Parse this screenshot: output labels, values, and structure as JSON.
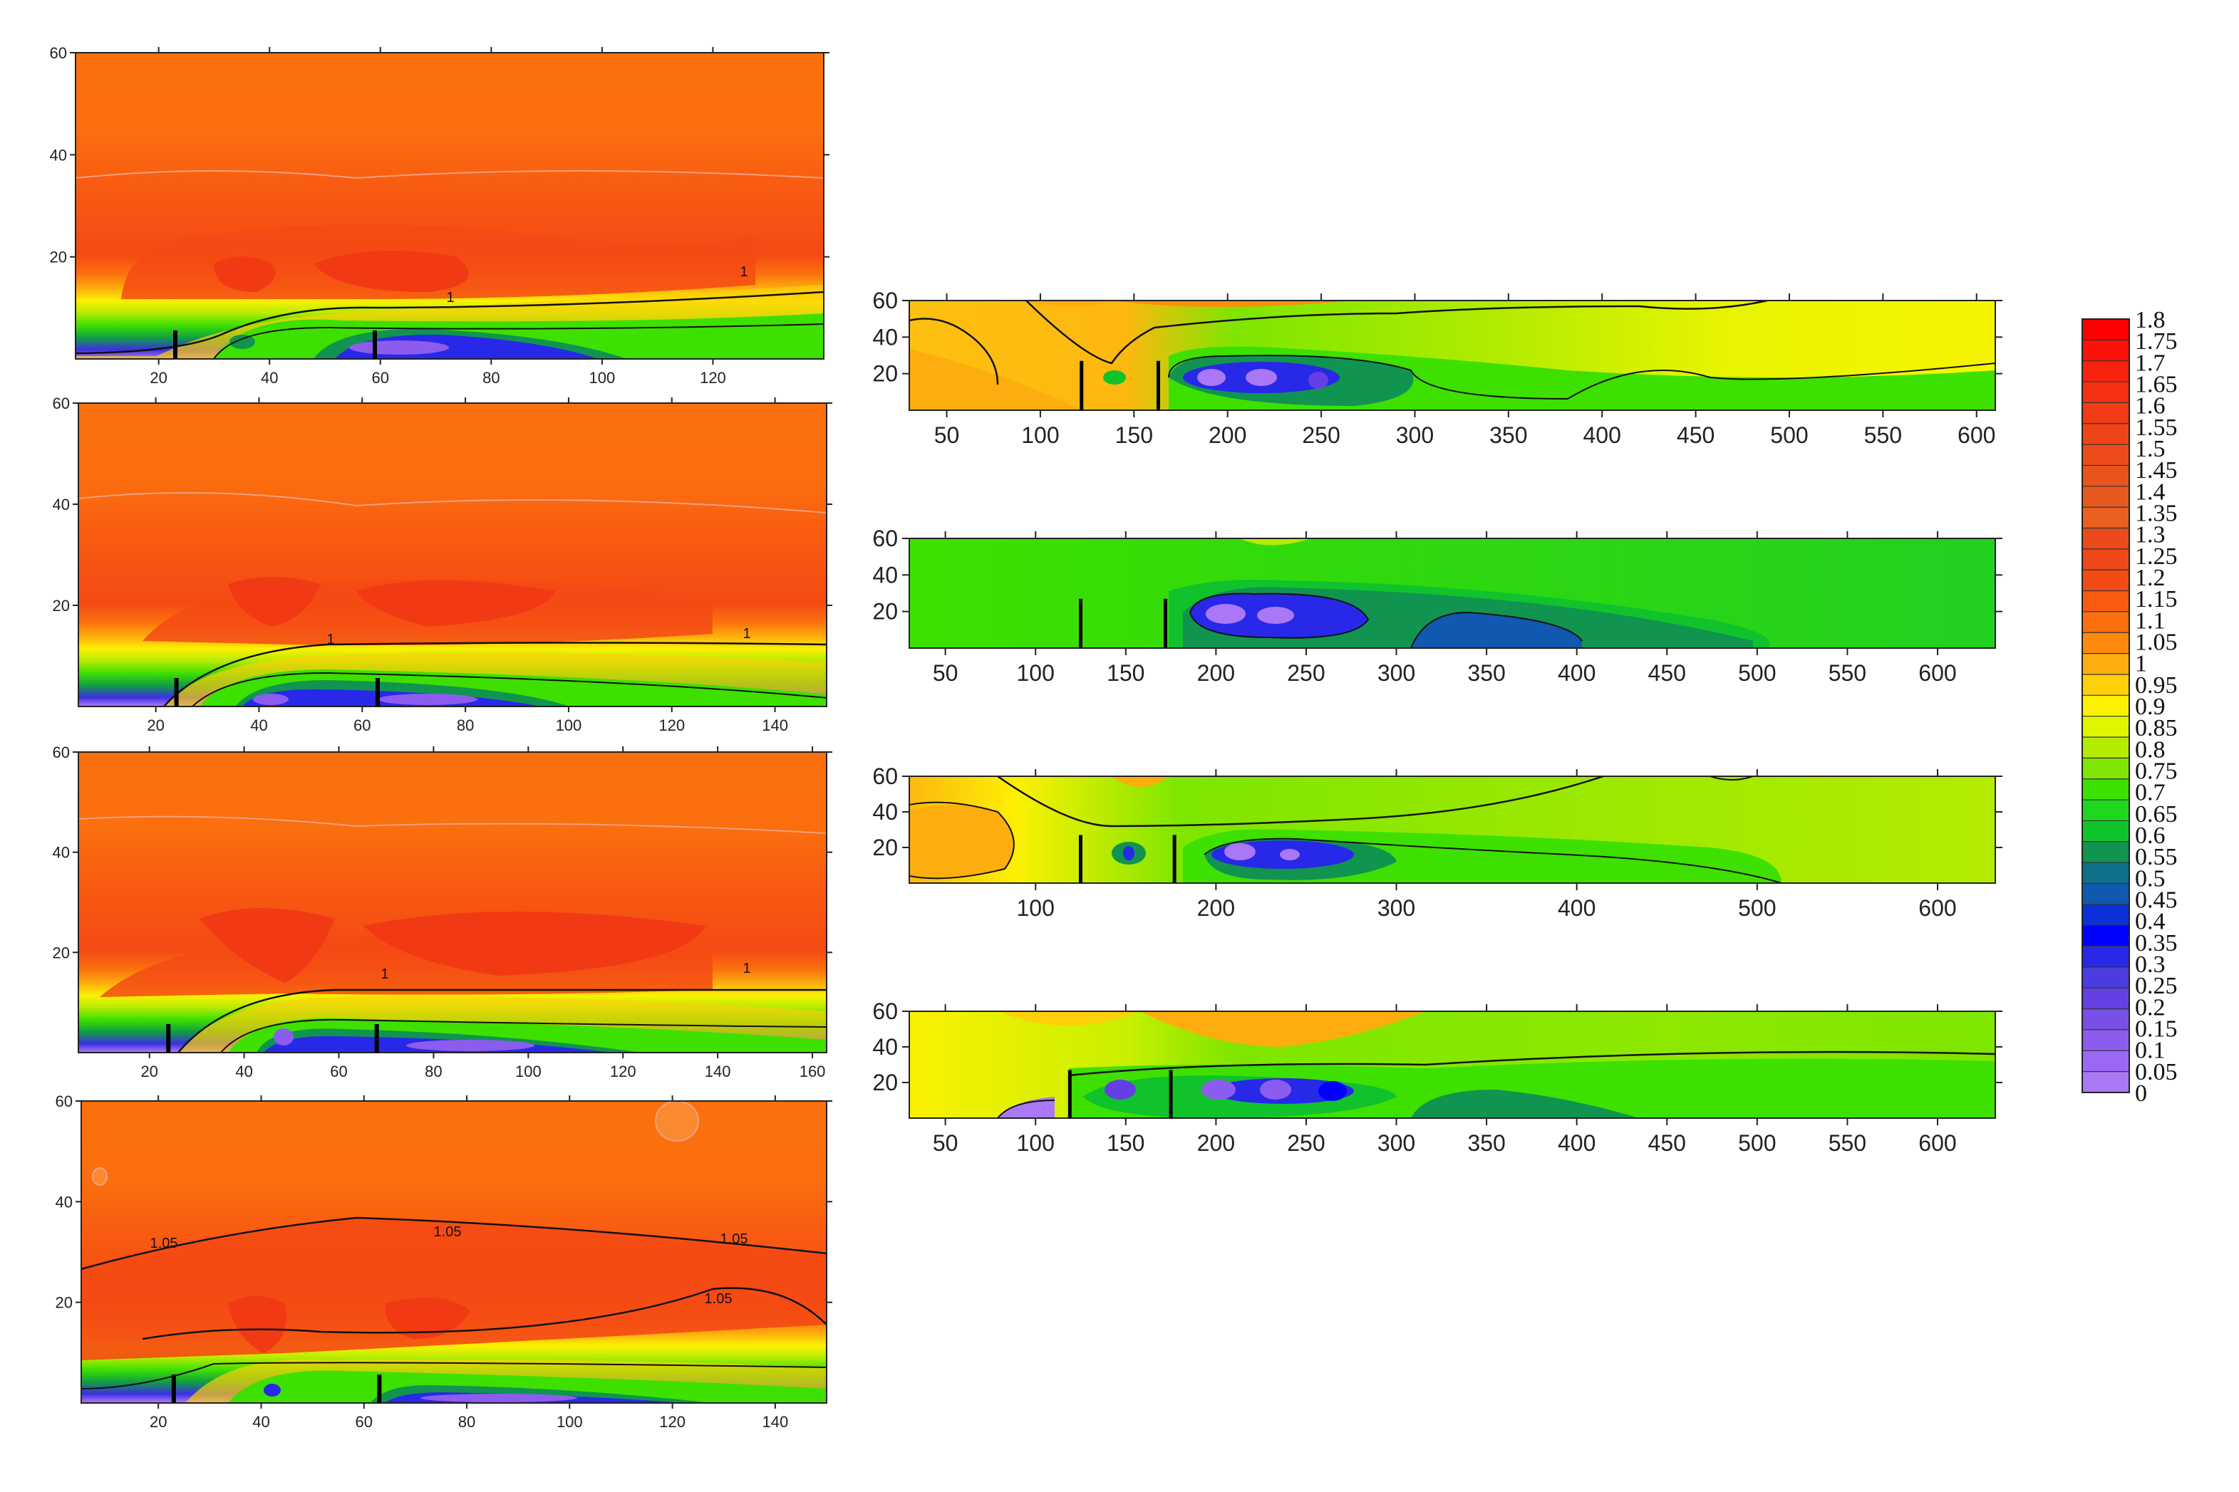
{
  "chart_data": [
    {
      "type": "heatmap",
      "id": "L1",
      "value_at_depth": 1.1,
      "xticks": [
        20,
        40,
        60,
        80,
        100,
        120
      ],
      "yticks": [
        20,
        40,
        60
      ],
      "xlim": [
        5,
        140
      ],
      "ylim": [
        0,
        60
      ],
      "markers_x": [
        23,
        59
      ],
      "contour_labels": [
        "1",
        "1"
      ]
    },
    {
      "type": "heatmap",
      "id": "L2",
      "value_at_depth": 1.1,
      "xticks": [
        20,
        40,
        60,
        80,
        100,
        120,
        140
      ],
      "yticks": [
        20,
        40,
        60
      ],
      "xlim": [
        5,
        150
      ],
      "ylim": [
        0,
        60
      ],
      "markers_x": [
        24,
        63
      ],
      "contour_labels": [
        "1",
        "1"
      ]
    },
    {
      "type": "heatmap",
      "id": "L3",
      "value_at_depth": 1.1,
      "xticks": [
        20,
        40,
        60,
        80,
        100,
        120,
        140,
        160
      ],
      "yticks": [
        20,
        40,
        60
      ],
      "xlim": [
        5,
        163
      ],
      "ylim": [
        0,
        60
      ],
      "markers_x": [
        24,
        68
      ],
      "contour_labels": [
        "1",
        "1"
      ]
    },
    {
      "type": "heatmap",
      "id": "L4",
      "value_at_depth": 1.1,
      "xticks": [
        20,
        40,
        60,
        80,
        100,
        120,
        140
      ],
      "yticks": [
        20,
        40,
        60
      ],
      "xlim": [
        5,
        150
      ],
      "ylim": [
        0,
        60
      ],
      "markers_x": [
        23,
        63
      ],
      "contour_labels": [
        "1.05",
        "1.05",
        "1.05",
        "1.05"
      ]
    },
    {
      "type": "heatmap",
      "id": "R1",
      "xticks": [
        50,
        100,
        150,
        200,
        250,
        300,
        350,
        400,
        450,
        500,
        550,
        600
      ],
      "yticks": [
        20,
        40,
        60
      ],
      "xlim": [
        30,
        610
      ],
      "ylim": [
        0,
        60
      ],
      "markers_x": [
        122,
        163
      ]
    },
    {
      "type": "heatmap",
      "id": "R2",
      "xticks": [
        50,
        100,
        150,
        200,
        250,
        300,
        350,
        400,
        450,
        500,
        550,
        600
      ],
      "yticks": [
        20,
        40,
        60
      ],
      "xlim": [
        30,
        632
      ],
      "ylim": [
        0,
        60
      ],
      "markers_x": [
        125,
        172
      ]
    },
    {
      "type": "heatmap",
      "id": "R3",
      "xticks": [
        100,
        200,
        300,
        400,
        500,
        600
      ],
      "yticks": [
        20,
        40,
        60
      ],
      "xlim": [
        30,
        632
      ],
      "ylim": [
        0,
        60
      ],
      "markers_x": [
        125,
        177
      ]
    },
    {
      "type": "heatmap",
      "id": "R4",
      "xticks": [
        50,
        100,
        150,
        200,
        250,
        300,
        350,
        400,
        450,
        500,
        550,
        600
      ],
      "yticks": [
        20,
        40,
        60
      ],
      "xlim": [
        30,
        632
      ],
      "ylim": [
        0,
        60
      ],
      "markers_x": [
        119,
        175
      ]
    }
  ],
  "colorbar": {
    "labels": [
      "1.8",
      "1.75",
      "1.7",
      "1.65",
      "1.6",
      "1.55",
      "1.5",
      "1.45",
      "1.4",
      "1.35",
      "1.3",
      "1.25",
      "1.2",
      "1.15",
      "1.1",
      "1.05",
      "1",
      "0.95",
      "0.9",
      "0.85",
      "0.8",
      "0.75",
      "0.7",
      "0.65",
      "0.6",
      "0.55",
      "0.5",
      "0.45",
      "0.4",
      "0.35",
      "0.3",
      "0.25",
      "0.2",
      "0.15",
      "0.1",
      "0.05",
      "0"
    ],
    "colors": [
      "#ff0000",
      "#fc1208",
      "#f9230d",
      "#f63012",
      "#f33b15",
      "#f04418",
      "#ec4c1a",
      "#e9531c",
      "#e65a1e",
      "#e96020",
      "#ec4a1c",
      "#f04818",
      "#f44a14",
      "#f85a12",
      "#fb6f0e",
      "#fd8a0e",
      "#fdae0e",
      "#fdd00a",
      "#fcf102",
      "#def600",
      "#b4ec00",
      "#7ee600",
      "#3ee000",
      "#1ed820",
      "#10c22c",
      "#109450",
      "#10708a",
      "#1058b0",
      "#0a30d8",
      "#0000ff",
      "#2828e8",
      "#4a3ce0",
      "#6440e4",
      "#7850e8",
      "#8c5cee",
      "#9a68f2",
      "#aa78f6"
    ]
  }
}
